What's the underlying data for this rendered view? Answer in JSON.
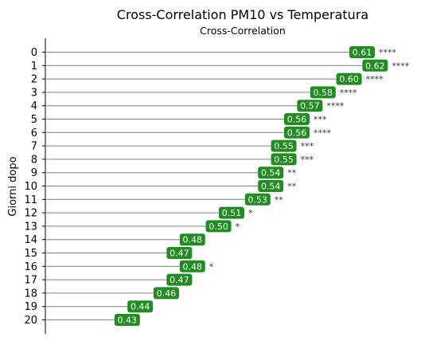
{
  "chart_data": {
    "type": "bar",
    "title": "Cross-Correlation PM10 vs Temperatura",
    "subtitle": "Cross-Correlation",
    "ylabel": "Giorni dopo",
    "xlabel": "",
    "categories": [
      "0",
      "1",
      "2",
      "3",
      "4",
      "5",
      "6",
      "7",
      "8",
      "9",
      "10",
      "11",
      "12",
      "13",
      "14",
      "15",
      "16",
      "17",
      "18",
      "19",
      "20"
    ],
    "values": [
      0.61,
      0.62,
      0.6,
      0.58,
      0.57,
      0.56,
      0.56,
      0.55,
      0.55,
      0.54,
      0.54,
      0.53,
      0.51,
      0.5,
      0.48,
      0.47,
      0.48,
      0.47,
      0.46,
      0.44,
      0.43
    ],
    "value_labels": [
      "0.61",
      "0.62",
      "0.60",
      "0.58",
      "0.57",
      "0.56",
      "0.56",
      "0.55",
      "0.55",
      "0.54",
      "0.54",
      "0.53",
      "0.51",
      "0.50",
      "0.48",
      "0.47",
      "0.48",
      "0.47",
      "0.46",
      "0.44",
      "0.43"
    ],
    "significance": [
      "****",
      "****",
      "****",
      "****",
      "****",
      "***",
      "****",
      "***",
      "***",
      "**",
      "**",
      "**",
      "*",
      "*",
      "",
      "",
      "*",
      "",
      "",
      "",
      ""
    ],
    "grid": false,
    "colors": {
      "label_box": "#228b22",
      "line": "#808080",
      "axis": "#000000",
      "sig_text": "#333333"
    }
  }
}
